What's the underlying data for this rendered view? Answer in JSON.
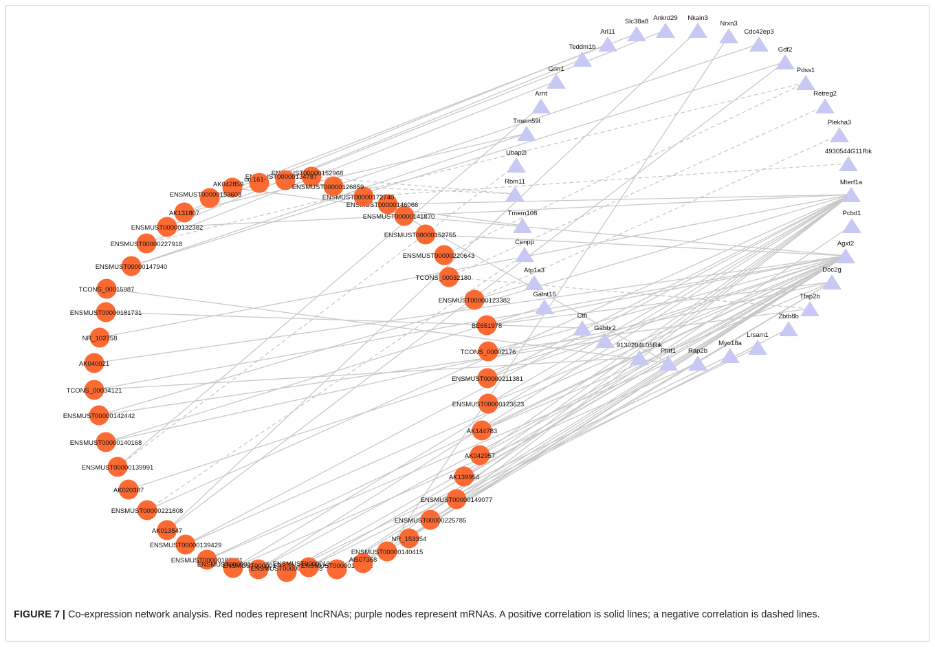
{
  "colors": {
    "lncrna": "#fb6a32",
    "mrna": "#c8c8f4",
    "edge": "#c8c8c8"
  },
  "caption": {
    "label": "FIGURE 7 |",
    "text": " Co-expression network analysis. Red nodes represent lncRNAs; purple nodes represent mRNAs. A positive correlation is solid lines; a negative correlation is dashed lines."
  },
  "lncrnas": [
    "ENSMUST00000152968",
    "ENSMUST00000134787",
    "uc.161-",
    "AK042859",
    "ENSMUST00000153603",
    "AK131807",
    "ENSMUST00000132382",
    "ENSMUST00000227918",
    "ENSMUST00000147940",
    "TCONS_00015987",
    "ENSMUST00000181731",
    "NR_102758",
    "AK040021",
    "TCONS_00034121",
    "ENSMUST00000142442",
    "ENSMUST00000140168",
    "ENSMUST00000139991",
    "AK020387",
    "ENSMUST00000221808",
    "AK013547",
    "ENSMUST00000139429",
    "ENSMUST00000187781",
    "ENSMUST00000150677",
    "ENSMUST00000176022",
    "ENSMUST00000126835",
    "ENSMUST00000133329",
    "ENSMUST00000161561",
    "AI507368",
    "ENSMUST00000140415",
    "NR_153354",
    "ENSMUST00000225785",
    "ENSMUST00000149077",
    "AK139954",
    "AK042957",
    "AK144783",
    "ENSMUST00000123623",
    "ENSMUST00000211381",
    "TCONS_00002176",
    "BE651978",
    "ENSMUST00000123382",
    "TCONS_00032180",
    "ENSMUST00000220643",
    "ENSMUST00000152755",
    "ENSMUST00000141870",
    "ENSMUST00000146066",
    "ENSMUST00000172740",
    "ENSMUST00000126859"
  ],
  "mrnas": [
    "Ankrd29",
    "Nkain3",
    "Nrxn3",
    "Cdc42ep3",
    "Gdf2",
    "Pdss1",
    "Retreg2",
    "Plekha3",
    "4930544G11Rik",
    "Mterf1a",
    "Pcbd1",
    "Agxt2",
    "Doc2g",
    "Tfap2b",
    "Zbtb8b",
    "Lrsam1",
    "Myo18a",
    "Rap2b",
    "Phtf1",
    "9130204L05Rik",
    "Gabbr2",
    "Cth",
    "Galnt15",
    "Atp1a3",
    "Cenpp",
    "Tmem108",
    "Rbm11",
    "Ubap2l",
    "Tmem59l",
    "Arnt",
    "Grin1",
    "Teddm1b",
    "Arl11",
    "Slc38a8"
  ],
  "edges": [
    [
      "ENSMUST00000153603",
      "Slc38a8",
      "+"
    ],
    [
      "AK131807",
      "Arl11",
      "+"
    ],
    [
      "ENSMUST00000132382",
      "Teddm1b",
      "+"
    ],
    [
      "ENSMUST00000227918",
      "Grin1",
      "+"
    ],
    [
      "ENSMUST00000147940",
      "Tmem59l",
      "+"
    ],
    [
      "TCONS_00015987",
      "Phtf1",
      "+"
    ],
    [
      "ENSMUST00000181731",
      "Cth",
      "+"
    ],
    [
      "NR_102758",
      "Mterf1a",
      "+"
    ],
    [
      "AK040021",
      "Agxt2",
      "+"
    ],
    [
      "TCONS_00034121",
      "Agxt2",
      "+"
    ],
    [
      "ENSMUST00000142442",
      "Mterf1a",
      "+"
    ],
    [
      "ENSMUST00000140168",
      "Doc2g",
      "+"
    ],
    [
      "ENSMUST00000139991",
      "Arnt",
      "+"
    ],
    [
      "ENSMUST00000139991",
      "Ubap2l",
      "-"
    ],
    [
      "AK020387",
      "Agxt2",
      "+"
    ],
    [
      "ENSMUST00000221808",
      "Mterf1a",
      "+"
    ],
    [
      "AK013547",
      "Nkain3",
      "+"
    ],
    [
      "ENSMUST00000139429",
      "Agxt2",
      "+"
    ],
    [
      "ENSMUST00000187781",
      "Phtf1",
      "+"
    ],
    [
      "ENSMUST00000150677",
      "Rap2b",
      "+"
    ],
    [
      "ENSMUST00000176022",
      "Agxt2",
      "+"
    ],
    [
      "ENSMUST00000126835",
      "Myo18a",
      "+"
    ],
    [
      "ENSMUST00000133329",
      "Lrsam1",
      "+"
    ],
    [
      "ENSMUST00000161561",
      "Pcbd1",
      "+"
    ],
    [
      "AI507368",
      "Mterf1a",
      "+"
    ],
    [
      "ENSMUST00000140415",
      "Nrxn3",
      "+"
    ],
    [
      "NR_153354",
      "Agxt2",
      "+"
    ],
    [
      "ENSMUST00000225785",
      "Doc2g",
      "+"
    ],
    [
      "ENSMUST00000149077",
      "Zbtb8b",
      "+"
    ],
    [
      "AK139954",
      "Agxt2",
      "+"
    ],
    [
      "AK042957",
      "Mterf1a",
      "+"
    ],
    [
      "AK144783",
      "Agxt2",
      "+"
    ],
    [
      "ENSMUST00000123623",
      "Agxt2",
      "+"
    ],
    [
      "ENSMUST00000211381",
      "Mterf1a",
      "+"
    ],
    [
      "TCONS_00002176",
      "Tfap2b",
      "+"
    ],
    [
      "BE651978",
      "Doc2g",
      "+"
    ],
    [
      "ENSMUST00000123382",
      "Plekha3",
      "-"
    ],
    [
      "TCONS_00032180",
      "Retreg2",
      "-"
    ],
    [
      "ENSMUST00000220643",
      "Pdss1",
      "-"
    ],
    [
      "ENSMUST00000152755",
      "Agxt2",
      "+"
    ],
    [
      "ENSMUST00000141870",
      "Phtf1",
      "+"
    ],
    [
      "ENSMUST00000146066",
      "Mterf1a",
      "+"
    ],
    [
      "ENSMUST00000172740",
      "4930544G11Rik",
      "-"
    ],
    [
      "ENSMUST00000126859",
      "Cdc42ep3",
      "+"
    ],
    [
      "ENSMUST00000152968",
      "Rbm11",
      "-"
    ],
    [
      "ENSMUST00000134787",
      "Ankrd29",
      "+"
    ],
    [
      "uc.161-",
      "Rbm11",
      "-"
    ],
    [
      "AK042859",
      "Tmem108",
      "+"
    ],
    [
      "ENSMUST00000147940",
      "Gdf2",
      "+"
    ],
    [
      "AK131807",
      "Tmem59l",
      "+"
    ],
    [
      "ENSMUST00000132382",
      "Mterf1a",
      "+"
    ],
    [
      "ENSMUST00000221808",
      "Cenpp",
      "-"
    ],
    [
      "AK013547",
      "Gdf2",
      "+"
    ],
    [
      "ENSMUST00000187781",
      "Agxt2",
      "+"
    ],
    [
      "ENSMUST00000225785",
      "Agxt2",
      "+"
    ],
    [
      "AK144783",
      "Doc2g",
      "+"
    ],
    [
      "BE651978",
      "Agxt2",
      "+"
    ],
    [
      "ENSMUST00000123382",
      "Atp1a3",
      "+"
    ],
    [
      "ENSMUST00000176022",
      "Mterf1a",
      "+"
    ],
    [
      "NR_153354",
      "Mterf1a",
      "+"
    ],
    [
      "AK042957",
      "Agxt2",
      "+"
    ],
    [
      "TCONS_00002176",
      "Agxt2",
      "+"
    ],
    [
      "ENSMUST00000140415",
      "Agxt2",
      "+"
    ],
    [
      "ENSMUST00000211381",
      "Agxt2",
      "+"
    ],
    [
      "ENSMUST00000142442",
      "Gabbr2",
      "+"
    ],
    [
      "ENSMUST00000140168",
      "Galnt15",
      "+"
    ],
    [
      "ENSMUST00000161561",
      "Agxt2",
      "+"
    ],
    [
      "AI507368",
      "Doc2g",
      "+"
    ],
    [
      "ENSMUST00000149077",
      "Agxt2",
      "+"
    ],
    [
      "AK139954",
      "Mterf1a",
      "+"
    ],
    [
      "ENSMUST00000123623",
      "Mterf1a",
      "+"
    ],
    [
      "TCONS_00034121",
      "9130204L05Rik",
      "+"
    ],
    [
      "ENSMUST00000227918",
      "Pdss1",
      "-"
    ],
    [
      "ENSMUST00000126835",
      "Agxt2",
      "+"
    ],
    [
      "ENSMUST00000150677",
      "Mterf1a",
      "+"
    ],
    [
      "ENSMUST00000139429",
      "Mterf1a",
      "+"
    ],
    [
      "ENSMUST00000133329",
      "Agxt2",
      "+"
    ],
    [
      "TCONS_00032180",
      "Tfap2b",
      "-"
    ],
    [
      "ENSMUST00000141870",
      "Agxt2",
      "+"
    ]
  ]
}
